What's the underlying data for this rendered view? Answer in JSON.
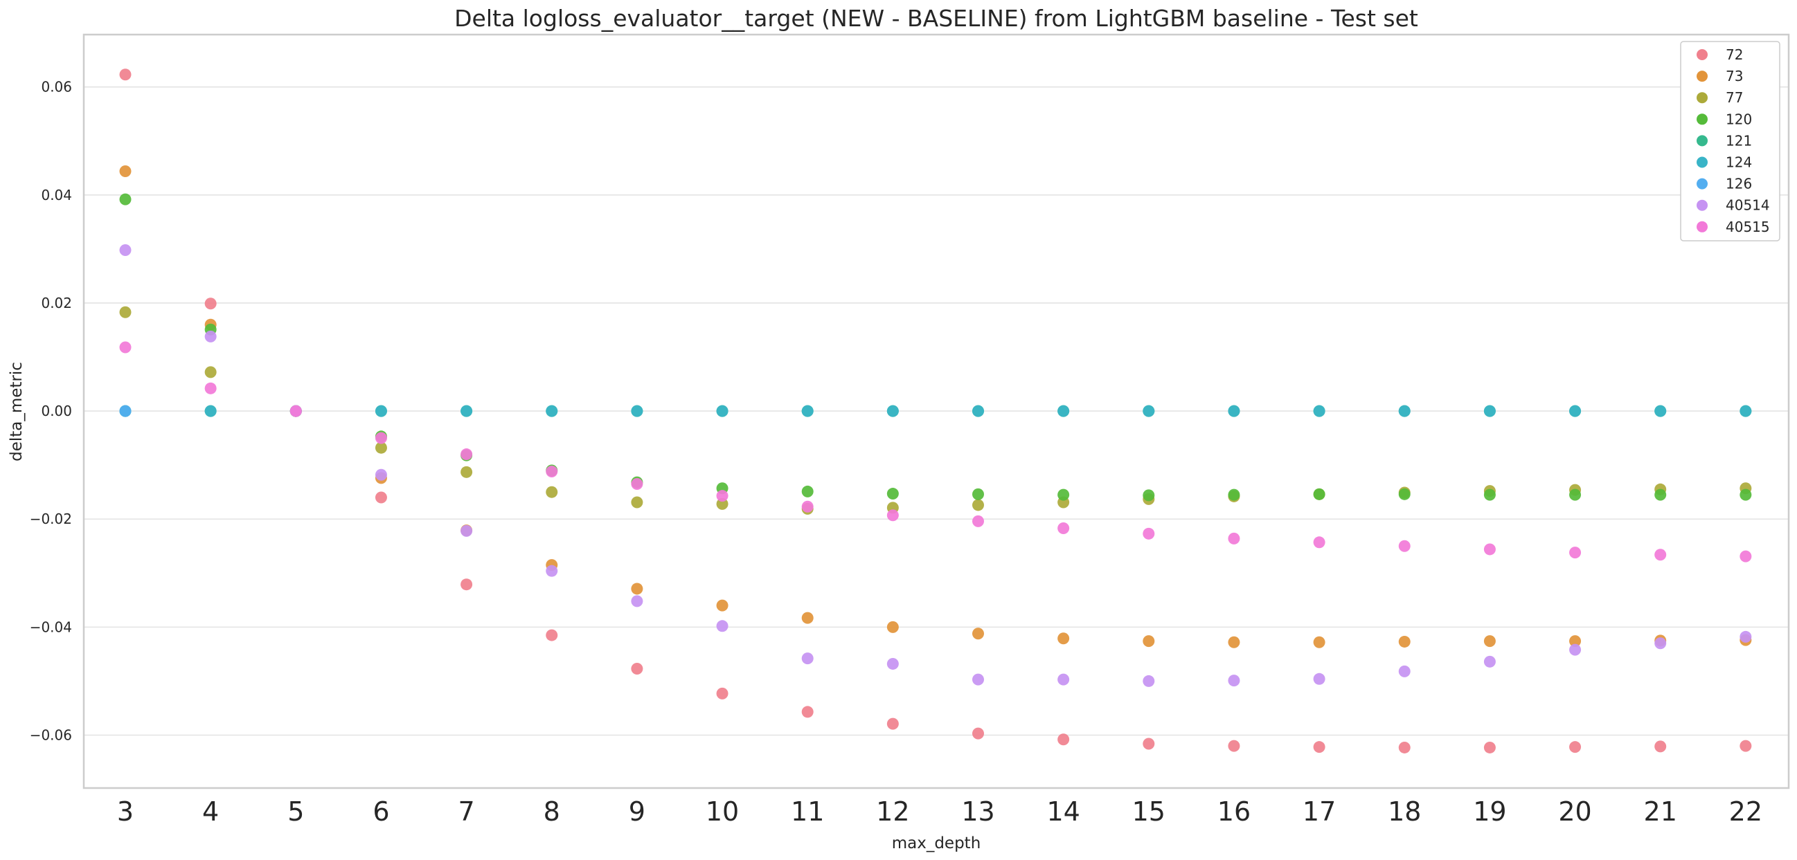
{
  "chart_data": {
    "type": "scatter",
    "title": "Delta logloss_evaluator__target (NEW - BASELINE) from LightGBM baseline - Test set",
    "xlabel": "max_depth",
    "ylabel": "delta_metric",
    "categories": [
      "3",
      "4",
      "5",
      "6",
      "7",
      "8",
      "9",
      "10",
      "11",
      "12",
      "13",
      "14",
      "15",
      "16",
      "17",
      "18",
      "19",
      "20",
      "21",
      "22"
    ],
    "ylim": [
      -0.0698,
      0.0697
    ],
    "yticks": [
      0.06,
      0.04,
      0.02,
      0.0,
      -0.02,
      -0.04,
      -0.06
    ],
    "ytick_labels": [
      "0.06",
      "0.04",
      "0.02",
      "0.00",
      "−0.02",
      "−0.04",
      "−0.06"
    ],
    "grid": true,
    "legend_position": "top-right",
    "series": [
      {
        "name": "72",
        "color": "#f0808d",
        "values": [
          0.0623,
          0.0199,
          0.0,
          -0.016,
          -0.0321,
          -0.0415,
          -0.0477,
          -0.0523,
          -0.0557,
          -0.0579,
          -0.0597,
          -0.0608,
          -0.0616,
          -0.062,
          -0.0622,
          -0.0623,
          -0.0623,
          -0.0622,
          -0.0621,
          -0.062
        ]
      },
      {
        "name": "73",
        "color": "#e2943a",
        "values": [
          0.0444,
          0.016,
          0.0,
          -0.0124,
          -0.0221,
          -0.0285,
          -0.0329,
          -0.036,
          -0.0383,
          -0.04,
          -0.0412,
          -0.0421,
          -0.0426,
          -0.0428,
          -0.0428,
          -0.0427,
          -0.0426,
          -0.0426,
          -0.0425,
          -0.0424
        ]
      },
      {
        "name": "77",
        "color": "#acaa3a",
        "values": [
          0.0183,
          0.0072,
          0.0,
          -0.0068,
          -0.0113,
          -0.015,
          -0.0169,
          -0.0172,
          -0.0181,
          -0.0179,
          -0.0174,
          -0.0169,
          -0.0163,
          -0.0158,
          -0.0154,
          -0.0151,
          -0.0148,
          -0.0146,
          -0.0145,
          -0.0143
        ]
      },
      {
        "name": "120",
        "color": "#55bb3a",
        "values": [
          0.0392,
          0.0151,
          0.0,
          -0.0047,
          -0.0082,
          -0.011,
          -0.0132,
          -0.0143,
          -0.0149,
          -0.0153,
          -0.0154,
          -0.0155,
          -0.0156,
          -0.0155,
          -0.0154,
          -0.0154,
          -0.0155,
          -0.0155,
          -0.0155,
          -0.0155
        ]
      },
      {
        "name": "121",
        "color": "#35b98e",
        "values": [
          0.0,
          0.0,
          0.0,
          0.0,
          0.0,
          0.0,
          0.0,
          0.0,
          0.0,
          0.0,
          0.0,
          0.0,
          0.0,
          0.0,
          0.0,
          0.0,
          0.0,
          0.0,
          0.0,
          0.0
        ]
      },
      {
        "name": "124",
        "color": "#39b4c7",
        "values": [
          0.0,
          0.0,
          0.0,
          0.0,
          0.0,
          0.0,
          0.0,
          0.0,
          0.0,
          0.0,
          0.0,
          0.0,
          0.0,
          0.0,
          0.0,
          0.0,
          0.0,
          0.0,
          0.0,
          0.0
        ]
      },
      {
        "name": "126",
        "color": "#53aef0",
        "values": [
          0.0,
          null,
          null,
          null,
          null,
          null,
          null,
          null,
          null,
          null,
          null,
          null,
          null,
          null,
          null,
          null,
          null,
          null,
          null,
          null
        ]
      },
      {
        "name": "40514",
        "color": "#c693f2",
        "values": [
          0.0298,
          0.0138,
          0.0,
          -0.0118,
          -0.0222,
          -0.0296,
          -0.0352,
          -0.0398,
          -0.0458,
          -0.0468,
          -0.0497,
          -0.0497,
          -0.05,
          -0.0499,
          -0.0496,
          -0.0482,
          -0.0464,
          -0.0442,
          -0.043,
          -0.0418
        ]
      },
      {
        "name": "40515",
        "color": "#f279d8",
        "values": [
          0.0118,
          0.0042,
          0.0,
          -0.005,
          -0.008,
          -0.0112,
          -0.0135,
          -0.0157,
          -0.0177,
          -0.0193,
          -0.0204,
          -0.0217,
          -0.0227,
          -0.0236,
          -0.0243,
          -0.025,
          -0.0256,
          -0.0262,
          -0.0266,
          -0.0269
        ]
      }
    ]
  }
}
